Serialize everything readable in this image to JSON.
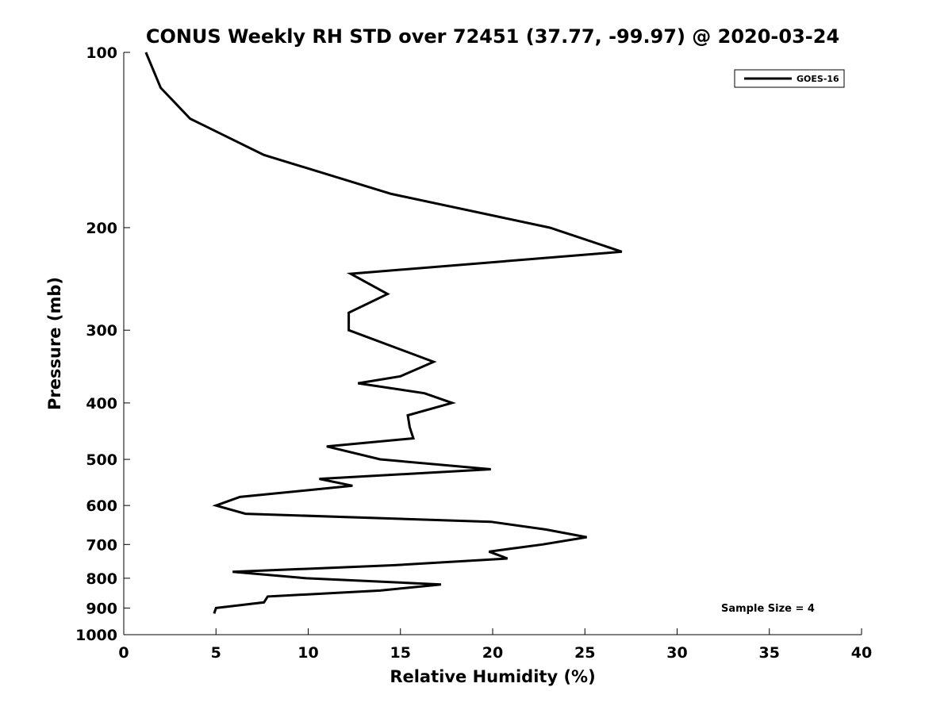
{
  "chart_data": {
    "type": "line",
    "title": "CONUS Weekly RH STD over 72451 (37.77, -99.97) @ 2020-03-24",
    "xlabel": "Relative Humidity (%)",
    "ylabel": "Pressure (mb)",
    "xlim": [
      0,
      40
    ],
    "ylim": [
      1000,
      100
    ],
    "yscale": "log",
    "y_reversed": true,
    "xticks": [
      0,
      5,
      10,
      15,
      20,
      25,
      30,
      35,
      40
    ],
    "xtick_labels": [
      "0",
      "5",
      "10",
      "15",
      "20",
      "25",
      "30",
      "35",
      "40"
    ],
    "yticks": [
      100,
      200,
      300,
      400,
      500,
      600,
      700,
      800,
      900,
      1000
    ],
    "ytick_labels": [
      "100",
      "200",
      "300",
      "400",
      "500",
      "600",
      "700",
      "800",
      "900",
      "1000"
    ],
    "legend": {
      "placement": "top-right",
      "entries": [
        "GOES-16"
      ]
    },
    "annotation": "Sample Size = 4",
    "series": [
      {
        "name": "GOES-16",
        "color": "#000000",
        "x": [
          1.2,
          2.0,
          3.6,
          7.6,
          14.5,
          23.1,
          27.0,
          12.3,
          14.3,
          12.2,
          12.2,
          16.8,
          15.0,
          12.7,
          16.3,
          17.8,
          15.4,
          15.5,
          15.7,
          11.0,
          13.9,
          19.9,
          10.6,
          12.4,
          6.3,
          5.0,
          6.6,
          19.9,
          22.9,
          25.1,
          22.7,
          19.8,
          20.8,
          14.6,
          5.9,
          9.9,
          17.2,
          13.9,
          7.8,
          7.6,
          5.0,
          4.9
        ]
      }
    ],
    "pressure": [
      100,
      115,
      130,
      150,
      175,
      200,
      220,
      240,
      260,
      280,
      300,
      340,
      360,
      370,
      385,
      400,
      420,
      440,
      460,
      475,
      500,
      520,
      540,
      555,
      580,
      600,
      620,
      640,
      660,
      680,
      700,
      720,
      740,
      760,
      780,
      800,
      820,
      840,
      860,
      880,
      900,
      920
    ]
  }
}
